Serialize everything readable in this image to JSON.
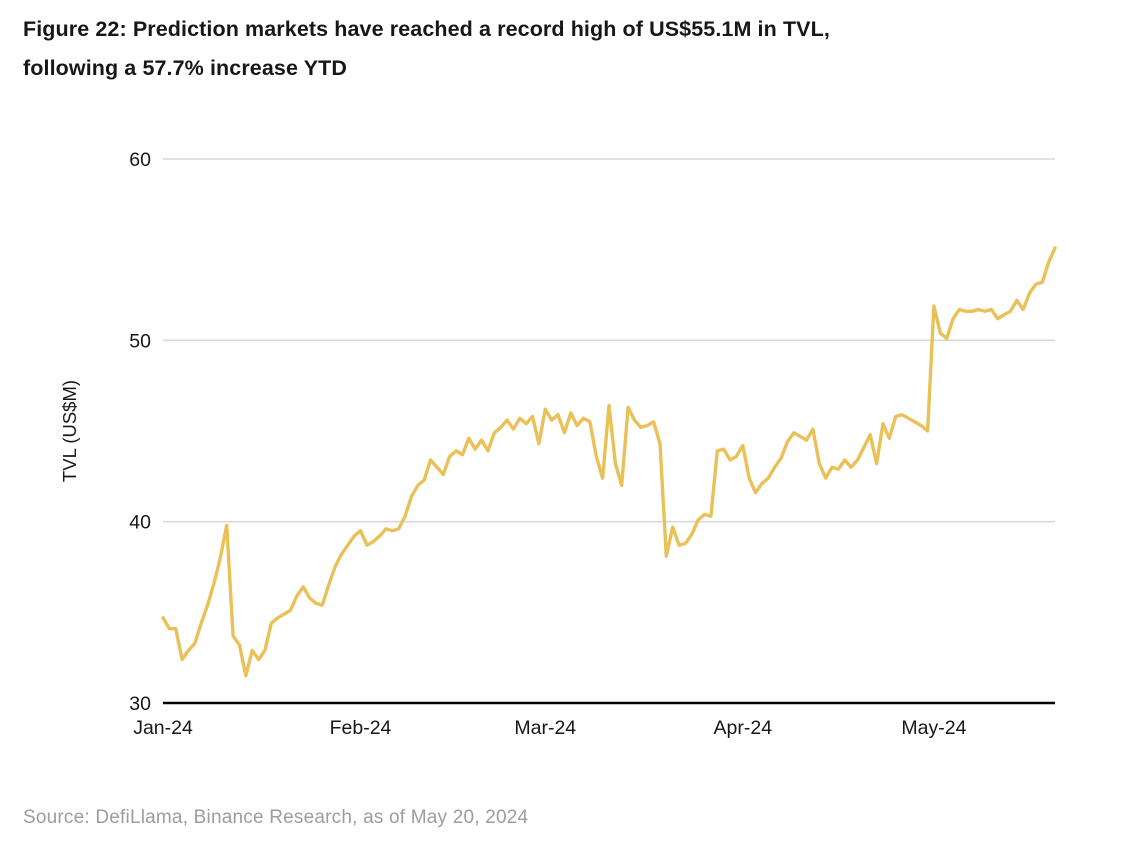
{
  "figure": {
    "title_lines": [
      "Figure 22: Prediction markets have reached a record high of US$55.1M in TVL,",
      "following a 57.7% increase YTD"
    ],
    "source": "Source: DefiLlama, Binance Research, as of May 20, 2024"
  },
  "chart_data": {
    "type": "line",
    "title": "Figure 22: Prediction markets have reached a record high of US$55.1M in TVL, following a 57.7% increase YTD",
    "xlabel": "",
    "ylabel": "TVL (US$M)",
    "ylim": [
      30,
      60
    ],
    "yticks": [
      30,
      40,
      50,
      60
    ],
    "grid": "horizontal-gridlines-at-40-50-60",
    "legend_position": "none",
    "x_start_date": "Jan 1, 2024",
    "x_end_date": "May 20, 2024",
    "x_frequency": "daily",
    "xticks": [
      {
        "label": "Jan-24",
        "day_index": 0
      },
      {
        "label": "Feb-24",
        "day_index": 31
      },
      {
        "label": "Mar-24",
        "day_index": 60
      },
      {
        "label": "Apr-24",
        "day_index": 91
      },
      {
        "label": "May-24",
        "day_index": 121
      }
    ],
    "colors": {
      "line": "#e9c158",
      "gridline": "#d8d8d8",
      "axis": "#000000",
      "tick_text": "#15171b",
      "source_text": "#9a9da1"
    },
    "series": [
      {
        "name": "Prediction markets TVL (US$M)",
        "values": [
          34.7,
          34.1,
          34.1,
          32.4,
          32.9,
          33.3,
          34.4,
          35.4,
          36.6,
          38.0,
          39.8,
          33.7,
          33.2,
          31.5,
          32.9,
          32.4,
          32.9,
          34.4,
          34.7,
          34.9,
          35.1,
          35.9,
          36.4,
          35.8,
          35.5,
          35.4,
          36.5,
          37.5,
          38.2,
          38.7,
          39.2,
          39.5,
          38.7,
          38.9,
          39.2,
          39.6,
          39.5,
          39.6,
          40.3,
          41.4,
          42.0,
          42.3,
          43.4,
          43.0,
          42.6,
          43.6,
          43.9,
          43.7,
          44.6,
          44.0,
          44.5,
          43.9,
          44.9,
          45.2,
          45.6,
          45.1,
          45.7,
          45.4,
          45.8,
          44.3,
          46.2,
          45.6,
          45.9,
          44.9,
          46.0,
          45.3,
          45.7,
          45.5,
          43.6,
          42.4,
          46.4,
          43.2,
          42.0,
          46.3,
          45.6,
          45.2,
          45.3,
          45.5,
          44.3,
          38.1,
          39.7,
          38.7,
          38.8,
          39.3,
          40.1,
          40.4,
          40.3,
          43.9,
          44.0,
          43.4,
          43.6,
          44.2,
          42.4,
          41.6,
          42.1,
          42.4,
          43.0,
          43.5,
          44.4,
          44.9,
          44.7,
          44.5,
          45.1,
          43.2,
          42.4,
          43.0,
          42.9,
          43.4,
          43.0,
          43.4,
          44.1,
          44.8,
          43.2,
          45.4,
          44.6,
          45.8,
          45.9,
          45.7,
          45.5,
          45.3,
          45.0,
          51.9,
          50.4,
          50.1,
          51.2,
          51.7,
          51.6,
          51.6,
          51.7,
          51.6,
          51.7,
          51.2,
          51.4,
          51.6,
          52.2,
          51.7,
          52.6,
          53.1,
          53.2,
          54.3,
          55.1
        ]
      }
    ]
  }
}
